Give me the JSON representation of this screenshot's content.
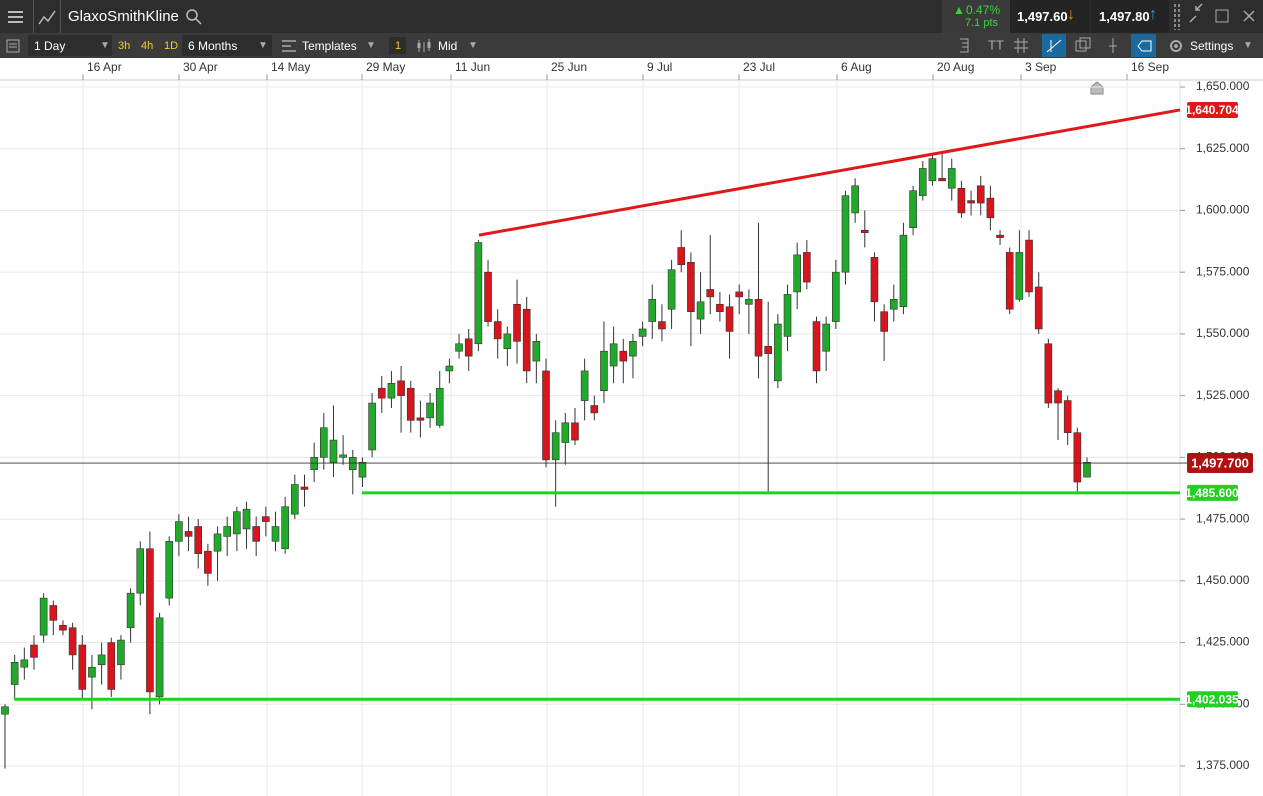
{
  "header": {
    "instrument": "GlaxoSmithKline",
    "change_pct": "0.47%",
    "change_pts": "7.1 pts",
    "sell": "1,497.60",
    "buy": "1,497.80"
  },
  "toolbar": {
    "interval": "1 Day",
    "quick_intervals": [
      "3h",
      "4h",
      "1D"
    ],
    "range": "6 Months",
    "templates": "Templates",
    "count": "1",
    "price_type": "Mid",
    "settings": "Settings"
  },
  "chart_data": {
    "type": "candlestick",
    "up_color": "#22a82a",
    "down_color": "#d8141c",
    "xticks": [
      "16 Apr",
      "30 Apr",
      "14 May",
      "29 May",
      "11 Jun",
      "25 Jun",
      "9 Jul",
      "23 Jul",
      "6 Aug",
      "20 Aug",
      "3 Sep",
      "16 Sep"
    ],
    "ylim": [
      1370,
      1655
    ],
    "yticks": [
      {
        "value": 1375,
        "label": "1,375.000"
      },
      {
        "value": 1400,
        "label": "1,400.000"
      },
      {
        "value": 1425,
        "label": "1,425.000"
      },
      {
        "value": 1450,
        "label": "1,450.000"
      },
      {
        "value": 1475,
        "label": "1,475.000"
      },
      {
        "value": 1500,
        "label": "1,500.000"
      },
      {
        "value": 1525,
        "label": "1,525.000"
      },
      {
        "value": 1550,
        "label": "1,550.000"
      },
      {
        "value": 1575,
        "label": "1,575.000"
      },
      {
        "value": 1600,
        "label": "1,600.000"
      },
      {
        "value": 1625,
        "label": "1,625.000"
      },
      {
        "value": 1650,
        "label": "1,650.000"
      }
    ],
    "grid": true,
    "current_price": {
      "value": 1497.7,
      "label": "1,497.700"
    },
    "resistance_line": {
      "start": 1590,
      "end": 1640.704,
      "label": "1,640.704",
      "color": "#e01818"
    },
    "support_lines": [
      {
        "value": 1485.6,
        "label": "1,485.600",
        "color": "#22d022"
      },
      {
        "value": 1402.035,
        "label": "1,402.035",
        "color": "#22d022"
      }
    ],
    "candles": [
      [
        1396,
        1400,
        1374,
        1399
      ],
      [
        1408,
        1420,
        1402,
        1417
      ],
      [
        1415,
        1423,
        1410,
        1418
      ],
      [
        1424,
        1428,
        1414,
        1419
      ],
      [
        1428,
        1445,
        1425,
        1443
      ],
      [
        1440,
        1442,
        1428,
        1434
      ],
      [
        1432,
        1434,
        1428,
        1430
      ],
      [
        1431,
        1433,
        1414,
        1420
      ],
      [
        1424,
        1428,
        1402,
        1406
      ],
      [
        1411,
        1420,
        1398,
        1415
      ],
      [
        1416,
        1425,
        1408,
        1420
      ],
      [
        1425,
        1427,
        1403,
        1406
      ],
      [
        1416,
        1428,
        1410,
        1426
      ],
      [
        1431,
        1447,
        1425,
        1445
      ],
      [
        1445,
        1466,
        1440,
        1463
      ],
      [
        1463,
        1470,
        1396,
        1405
      ],
      [
        1403,
        1437,
        1400,
        1435
      ],
      [
        1443,
        1468,
        1440,
        1466
      ],
      [
        1466,
        1477,
        1460,
        1474
      ],
      [
        1470,
        1476,
        1462,
        1468
      ],
      [
        1472,
        1475,
        1455,
        1461
      ],
      [
        1462,
        1465,
        1448,
        1453
      ],
      [
        1462,
        1472,
        1450,
        1469
      ],
      [
        1468,
        1476,
        1460,
        1472
      ],
      [
        1469,
        1480,
        1462,
        1478
      ],
      [
        1471,
        1482,
        1463,
        1479
      ],
      [
        1472,
        1476,
        1460,
        1466
      ],
      [
        1476,
        1480,
        1468,
        1474
      ],
      [
        1466,
        1478,
        1462,
        1472
      ],
      [
        1463,
        1484,
        1461,
        1480
      ],
      [
        1477,
        1493,
        1475,
        1489
      ],
      [
        1488,
        1493,
        1480,
        1487
      ],
      [
        1495,
        1506,
        1490,
        1500
      ],
      [
        1500,
        1518,
        1495,
        1512
      ],
      [
        1498,
        1521,
        1492,
        1507
      ],
      [
        1500,
        1509,
        1497,
        1501
      ],
      [
        1495,
        1503,
        1485,
        1500
      ],
      [
        1492,
        1500,
        1488,
        1498
      ],
      [
        1503,
        1526,
        1500,
        1522
      ],
      [
        1528,
        1533,
        1518,
        1524
      ],
      [
        1524,
        1535,
        1520,
        1530
      ],
      [
        1531,
        1537,
        1510,
        1525
      ],
      [
        1528,
        1531,
        1510,
        1515
      ],
      [
        1516,
        1523,
        1508,
        1515
      ],
      [
        1516,
        1526,
        1512,
        1522
      ],
      [
        1513,
        1535,
        1512,
        1528
      ],
      [
        1535,
        1540,
        1530,
        1537
      ],
      [
        1543,
        1550,
        1540,
        1546
      ],
      [
        1548,
        1552,
        1535,
        1541
      ],
      [
        1546,
        1588,
        1543,
        1587
      ],
      [
        1575,
        1580,
        1553,
        1555
      ],
      [
        1555,
        1560,
        1540,
        1548
      ],
      [
        1544,
        1553,
        1537,
        1550
      ],
      [
        1562,
        1572,
        1538,
        1547
      ],
      [
        1560,
        1565,
        1530,
        1535
      ],
      [
        1539,
        1550,
        1530,
        1547
      ],
      [
        1535,
        1540,
        1496,
        1499
      ],
      [
        1499,
        1515,
        1480,
        1510
      ],
      [
        1506,
        1518,
        1497,
        1514
      ],
      [
        1514,
        1520,
        1505,
        1507
      ],
      [
        1523,
        1540,
        1515,
        1535
      ],
      [
        1521,
        1525,
        1515,
        1518
      ],
      [
        1527,
        1555,
        1522,
        1543
      ],
      [
        1537,
        1553,
        1530,
        1546
      ],
      [
        1543,
        1548,
        1530,
        1539
      ],
      [
        1541,
        1550,
        1532,
        1547
      ],
      [
        1549,
        1555,
        1545,
        1552
      ],
      [
        1555,
        1570,
        1548,
        1564
      ],
      [
        1555,
        1562,
        1547,
        1552
      ],
      [
        1560,
        1580,
        1552,
        1576
      ],
      [
        1585,
        1592,
        1575,
        1578
      ],
      [
        1579,
        1583,
        1545,
        1559
      ],
      [
        1556,
        1575,
        1550,
        1563
      ],
      [
        1568,
        1590,
        1558,
        1565
      ],
      [
        1562,
        1567,
        1555,
        1559
      ],
      [
        1561,
        1566,
        1540,
        1551
      ],
      [
        1567,
        1570,
        1558,
        1565
      ],
      [
        1562,
        1568,
        1550,
        1564
      ],
      [
        1564,
        1595,
        1532,
        1541
      ],
      [
        1545,
        1563,
        1485,
        1542
      ],
      [
        1531,
        1558,
        1528,
        1554
      ],
      [
        1549,
        1570,
        1543,
        1566
      ],
      [
        1567,
        1587,
        1560,
        1582
      ],
      [
        1583,
        1588,
        1568,
        1571
      ],
      [
        1555,
        1557,
        1530,
        1535
      ],
      [
        1543,
        1557,
        1535,
        1554
      ],
      [
        1555,
        1580,
        1552,
        1575
      ],
      [
        1575,
        1608,
        1570,
        1606
      ],
      [
        1599,
        1613,
        1595,
        1610
      ],
      [
        1592,
        1600,
        1585,
        1591
      ],
      [
        1581,
        1583,
        1555,
        1563
      ],
      [
        1559,
        1562,
        1539,
        1551
      ],
      [
        1560,
        1570,
        1555,
        1564
      ],
      [
        1561,
        1595,
        1558,
        1590
      ],
      [
        1593,
        1610,
        1590,
        1608
      ],
      [
        1606,
        1620,
        1604,
        1617
      ],
      [
        1612,
        1623,
        1610,
        1621
      ],
      [
        1613,
        1624,
        1612,
        1612
      ],
      [
        1609,
        1621,
        1604,
        1617
      ],
      [
        1609,
        1612,
        1597,
        1599
      ],
      [
        1604,
        1608,
        1598,
        1603
      ],
      [
        1610,
        1614,
        1598,
        1603
      ],
      [
        1605,
        1610,
        1592,
        1597
      ],
      [
        1590,
        1592,
        1586,
        1589
      ],
      [
        1583,
        1585,
        1558,
        1560
      ],
      [
        1564,
        1592,
        1563,
        1583
      ],
      [
        1588,
        1592,
        1565,
        1567
      ],
      [
        1569,
        1575,
        1550,
        1552
      ],
      [
        1546,
        1548,
        1520,
        1522
      ],
      [
        1527,
        1528,
        1507,
        1522
      ],
      [
        1523,
        1525,
        1505,
        1510
      ],
      [
        1510,
        1512,
        1485,
        1490
      ],
      [
        1492,
        1500,
        1492,
        1498
      ]
    ]
  }
}
